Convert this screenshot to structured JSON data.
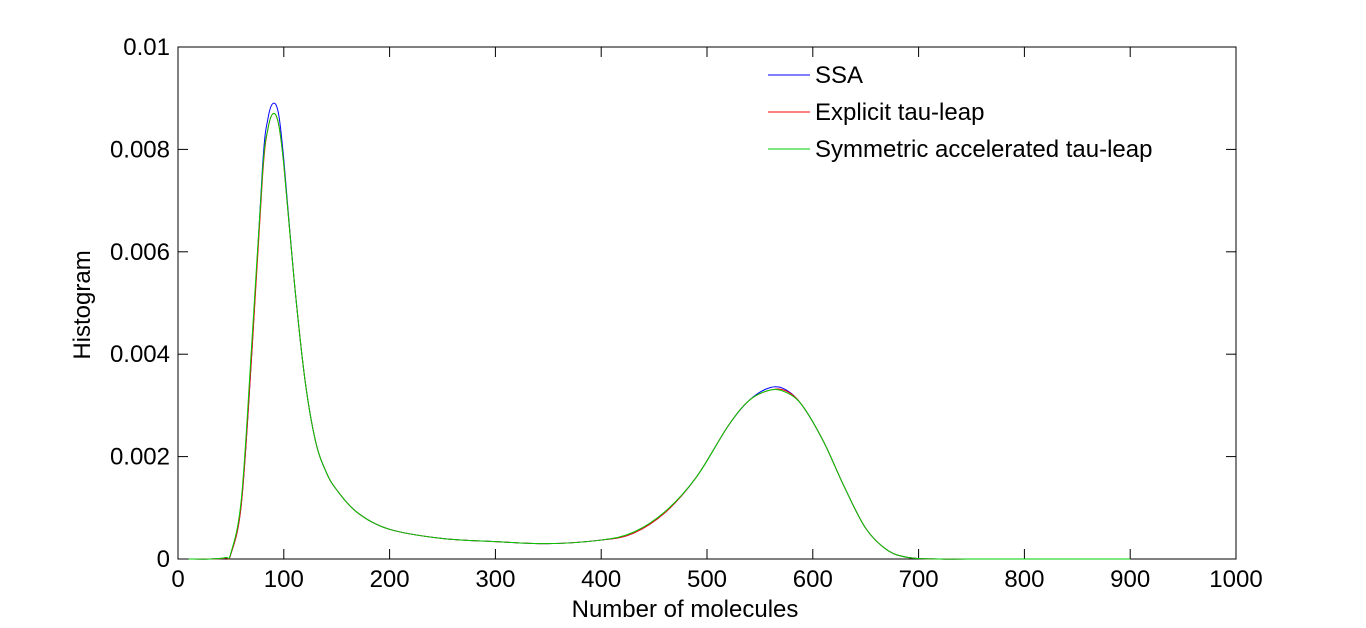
{
  "chart_data": {
    "type": "line",
    "title": "",
    "xlabel": "Number of molecules",
    "ylabel": "Histogram",
    "xlim": [
      0,
      1000
    ],
    "ylim": [
      0,
      0.01
    ],
    "xticks": [
      "0",
      "100",
      "200",
      "300",
      "400",
      "500",
      "600",
      "700",
      "800",
      "900",
      "1000"
    ],
    "yticks": [
      "0",
      "0.002",
      "0.004",
      "0.006",
      "0.008",
      "0.01"
    ],
    "grid": false,
    "legend_position": "top-right",
    "series": [
      {
        "name": "SSA",
        "color": "#0000ff",
        "x": [
          10,
          30,
          45,
          50,
          60,
          70,
          80,
          85,
          90,
          95,
          100,
          110,
          120,
          130,
          140,
          150,
          170,
          200,
          250,
          300,
          350,
          400,
          430,
          460,
          490,
          520,
          540,
          560,
          575,
          590,
          610,
          630,
          650,
          670,
          690,
          720,
          760,
          800,
          850,
          900
        ],
        "y": [
          0,
          0,
          2e-05,
          0.0001,
          0.0011,
          0.0041,
          0.0077,
          0.0086,
          0.0089,
          0.0087,
          0.0078,
          0.0054,
          0.0035,
          0.0023,
          0.0017,
          0.00135,
          0.0009,
          0.00058,
          0.0004,
          0.00034,
          0.0003,
          0.00037,
          0.0005,
          0.0009,
          0.0016,
          0.0026,
          0.0031,
          0.00335,
          0.0033,
          0.003,
          0.0023,
          0.0014,
          0.0006,
          0.00018,
          3e-05,
          0,
          0,
          0,
          0,
          0
        ]
      },
      {
        "name": "Explicit tau-leap",
        "color": "#ff0000",
        "x": [
          10,
          30,
          45,
          50,
          60,
          70,
          80,
          85,
          90,
          95,
          100,
          110,
          120,
          130,
          140,
          150,
          170,
          200,
          250,
          300,
          350,
          400,
          430,
          460,
          490,
          520,
          540,
          560,
          575,
          590,
          610,
          630,
          650,
          670,
          690,
          720,
          760,
          800,
          850,
          900
        ],
        "y": [
          0,
          0,
          2e-05,
          0.0001,
          0.0011,
          0.0041,
          0.0075,
          0.0084,
          0.0087,
          0.0085,
          0.0077,
          0.0054,
          0.0035,
          0.0023,
          0.0017,
          0.00135,
          0.0009,
          0.00058,
          0.0004,
          0.00034,
          0.0003,
          0.00037,
          0.0005,
          0.0009,
          0.0016,
          0.0026,
          0.0031,
          0.0033,
          0.00328,
          0.003,
          0.0023,
          0.0014,
          0.0006,
          0.00018,
          3e-05,
          0,
          0,
          0,
          0,
          0
        ]
      },
      {
        "name": "Symmetric accelerated tau-leap",
        "color": "#00cc00",
        "x": [
          10,
          30,
          45,
          50,
          60,
          70,
          80,
          85,
          90,
          95,
          100,
          110,
          120,
          130,
          140,
          150,
          170,
          200,
          250,
          300,
          350,
          400,
          430,
          460,
          490,
          520,
          540,
          560,
          575,
          590,
          610,
          630,
          650,
          670,
          690,
          720,
          760,
          800,
          850,
          900
        ],
        "y": [
          0,
          0,
          3e-05,
          0.00012,
          0.0012,
          0.0043,
          0.0076,
          0.0084,
          0.0087,
          0.0085,
          0.0077,
          0.0054,
          0.0035,
          0.0023,
          0.0017,
          0.00135,
          0.0009,
          0.00058,
          0.0004,
          0.00034,
          0.0003,
          0.00037,
          0.00052,
          0.00092,
          0.0016,
          0.0026,
          0.0031,
          0.0033,
          0.00325,
          0.003,
          0.0023,
          0.0014,
          0.0006,
          0.00018,
          3e-05,
          0,
          0,
          0,
          0,
          0
        ]
      }
    ]
  }
}
